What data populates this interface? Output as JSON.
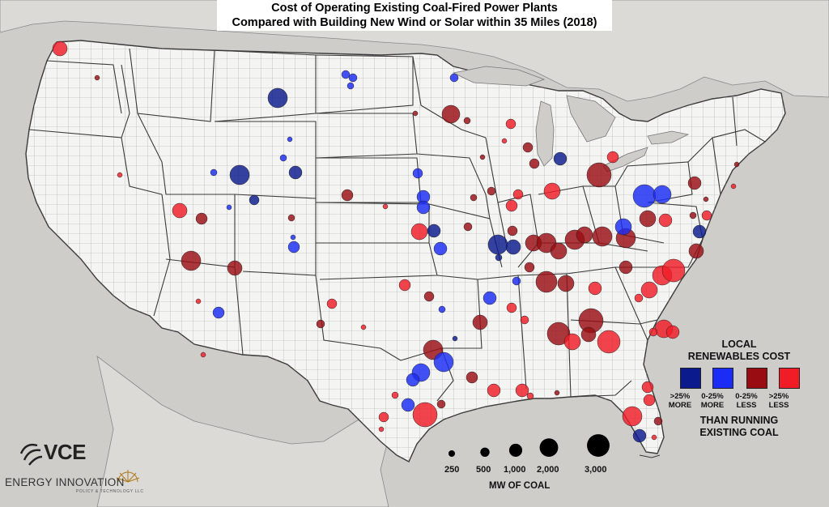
{
  "title": {
    "line1": "Cost of Operating Existing Coal-Fired Power Plants",
    "line2": "Compared with Building New Wind or Solar within 35 Miles (2018)"
  },
  "legend": {
    "heading_line1": "LOCAL",
    "heading_line2": "RENEWABLES COST",
    "categories": [
      {
        "line1": ">25%",
        "line2": "MORE",
        "color": "#0b1a8c"
      },
      {
        "line1": "0-25%",
        "line2": "MORE",
        "color": "#1a2cf5"
      },
      {
        "line1": "0-25%",
        "line2": "LESS",
        "color": "#990d12"
      },
      {
        "line1": ">25%",
        "line2": "LESS",
        "color": "#f01c26"
      }
    ],
    "footer_line1": "THAN RUNNING",
    "footer_line2": "EXISTING COAL"
  },
  "size_legend": {
    "title": "MW OF COAL",
    "sizes": [
      {
        "label": "250",
        "mw": 250
      },
      {
        "label": "500",
        "mw": 500
      },
      {
        "label": "1,000",
        "mw": 1000
      },
      {
        "label": "2,000",
        "mw": 2000
      },
      {
        "label": "3,000",
        "mw": 3000
      }
    ]
  },
  "logos": {
    "vce": "VCE",
    "energy_innovation": "ENERGY INNOVATION",
    "energy_innovation_sub": "POLICY & TECHNOLOGY LLC"
  },
  "colors": {
    "land": "#f4f4f3",
    "water": "#cfcdca",
    "state_border": "#3a3a3a",
    "county_border": "#9a9a9a"
  }
}
